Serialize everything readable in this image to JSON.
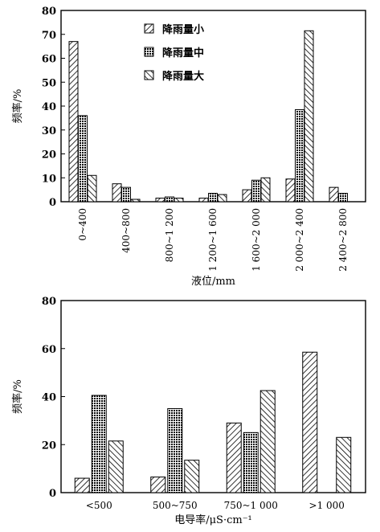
{
  "chart_data": [
    {
      "type": "bar",
      "categories": [
        "0~400",
        "400~800",
        "800~1 200",
        "1 200~1 600",
        "1 600~2 000",
        "2 000~2 400",
        "2 400~2 800"
      ],
      "series": [
        {
          "name": "降雨量小",
          "values": [
            67,
            7.5,
            1.5,
            1.5,
            5,
            9.5,
            6
          ]
        },
        {
          "name": "降雨量中",
          "values": [
            36,
            6,
            2,
            3.5,
            9,
            38.5,
            3.5
          ]
        },
        {
          "name": "降雨量大",
          "values": [
            11,
            1,
            1.5,
            3,
            10,
            71.5,
            null
          ]
        }
      ],
      "xlabel": "液位/mm",
      "ylabel": "频率/%",
      "ylim": [
        0,
        80
      ],
      "yticks": [
        0,
        10,
        20,
        30,
        40,
        50,
        60,
        70,
        80
      ],
      "legend_position": "top-center",
      "grid": false
    },
    {
      "type": "bar",
      "categories": [
        "<500",
        "500~750",
        "750~1 000",
        ">1 000"
      ],
      "series": [
        {
          "values": [
            6,
            6.5,
            29,
            58.5
          ]
        },
        {
          "values": [
            40.5,
            35,
            25,
            null
          ]
        },
        {
          "values": [
            21.5,
            13.5,
            42.5,
            23
          ]
        }
      ],
      "xlabel": "电导率/μS·cm⁻¹",
      "ylabel": "频率/%",
      "ylim": [
        0,
        80
      ],
      "yticks": [
        0,
        20,
        40,
        60,
        80
      ],
      "grid": false
    }
  ],
  "styles": {
    "series_patterns": [
      "forward-hatch",
      "dense-dots",
      "back-hatch"
    ],
    "stroke_color": "#000000"
  }
}
